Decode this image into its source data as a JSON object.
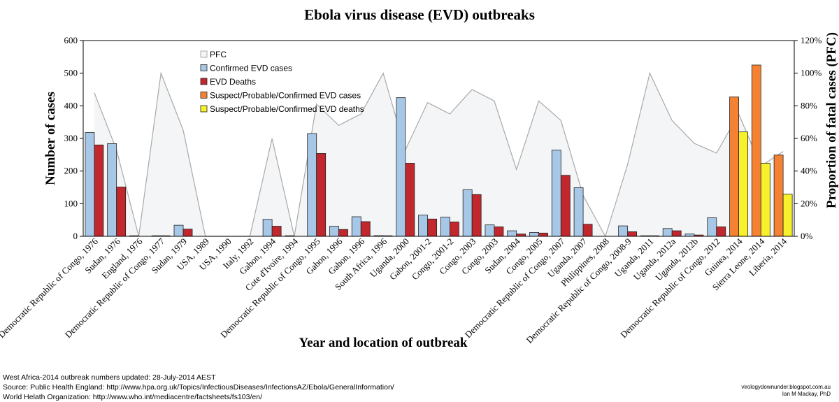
{
  "chart_data": {
    "type": "bar",
    "title": "Ebola virus disease (EVD) outbreaks",
    "xlabel": "Year and location of outbreak",
    "ylabel": "Number of cases",
    "y2label": "Proportion of fatal cases (PFC)",
    "ylim": [
      0,
      600
    ],
    "yticks": [
      "0",
      "100",
      "200",
      "300",
      "400",
      "500",
      "600"
    ],
    "y2lim": [
      0,
      1.2
    ],
    "y2ticks": [
      "0%",
      "20%",
      "40%",
      "60%",
      "80%",
      "100%",
      "120%"
    ],
    "categories": [
      "Democratic Republic of Congo, 1976",
      "Sudan, 1976",
      "England, 1976",
      "Democratic Republic of Congo, 1977",
      "Sudan, 1979",
      "USA, 1989",
      "USA, 1990",
      "Italy, 1992",
      "Gabon, 1994",
      "Cote d'Ivoire, 1994",
      "Democratic Republic of Congo, 1995",
      "Gabon, 1996",
      "Gabon, 1996",
      "South Africa, 1996",
      "Uganda, 2000",
      "Gabon, 2001-2",
      "Congo, 2001-2",
      "Congo, 2003",
      "Congo, 2003",
      "Sudan, 2004",
      "Congo, 2005",
      "Democratic Republic of Congo, 2007",
      "Uganda, 2007",
      "Philippines, 2008",
      "Democratic Republic of Congo, 2008-9",
      "Uganda, 2011",
      "Uganda, 2012a",
      "Uganda, 2012b",
      "Democratic Republic of Congo, 2012",
      "Guinea, 2014",
      "Sierra Leone, 2014",
      "Liberia, 2014"
    ],
    "series": [
      {
        "name": "PFC",
        "type": "area",
        "axis": "right",
        "values": [
          0.88,
          0.53,
          0,
          1.0,
          0.65,
          0,
          0,
          0,
          0.6,
          0,
          0.81,
          0.68,
          0.75,
          1.0,
          0.53,
          0.82,
          0.75,
          0.9,
          0.83,
          0.41,
          0.83,
          0.71,
          0.25,
          0,
          0.44,
          1.0,
          0.71,
          0.57,
          0.51,
          0.75,
          0.43,
          0.52
        ]
      },
      {
        "name": "Confirmed EVD cases",
        "type": "bar",
        "values": [
          318,
          284,
          1,
          1,
          34,
          0,
          0,
          0,
          52,
          1,
          315,
          31,
          60,
          2,
          425,
          65,
          59,
          143,
          35,
          17,
          12,
          264,
          149,
          0,
          32,
          1,
          24,
          7,
          57,
          null,
          null,
          null
        ]
      },
      {
        "name": "EVD Deaths",
        "type": "bar",
        "values": [
          280,
          151,
          0,
          1,
          22,
          0,
          0,
          0,
          31,
          0,
          254,
          21,
          45,
          1,
          224,
          53,
          44,
          128,
          29,
          7,
          10,
          187,
          37,
          0,
          14,
          1,
          17,
          4,
          29,
          null,
          null,
          null
        ]
      },
      {
        "name": "Suspect/Probable/Confirmed EVD cases",
        "type": "bar",
        "values": [
          null,
          null,
          null,
          null,
          null,
          null,
          null,
          null,
          null,
          null,
          null,
          null,
          null,
          null,
          null,
          null,
          null,
          null,
          null,
          null,
          null,
          null,
          null,
          null,
          null,
          null,
          null,
          null,
          null,
          427,
          525,
          249
        ]
      },
      {
        "name": "Suspect/Probable/Confirmed EVD deaths",
        "type": "bar",
        "values": [
          null,
          null,
          null,
          null,
          null,
          null,
          null,
          null,
          null,
          null,
          null,
          null,
          null,
          null,
          null,
          null,
          null,
          null,
          null,
          null,
          null,
          null,
          null,
          null,
          null,
          null,
          null,
          null,
          null,
          320,
          224,
          129
        ]
      }
    ],
    "colors": {
      "pfc_fill": "#f3f5f6",
      "pfc_line": "#a9a9a9",
      "confirmed_cases": "#a7c7e7",
      "deaths": "#c1272d",
      "suspect_cases": "#f58232",
      "suspect_deaths": "#f6f12c"
    },
    "legend_position": "top-left inside plot"
  },
  "footer": {
    "line1": "West Africa-2014 outbreak numbers updated: 28-July-2014 AEST",
    "line2": "Source: Public Health England: http://www.hpa.org.uk/Topics/InfectiousDiseases/InfectionsAZ/Ebola/GeneralInformation/",
    "line3": "World Helath Organization: http://www.who.int/mediacentre/factsheets/fs103/en/"
  },
  "credit": {
    "site": "virologydownunder.blogspot.com.au",
    "author": "Ian M Mackay, PhD"
  }
}
